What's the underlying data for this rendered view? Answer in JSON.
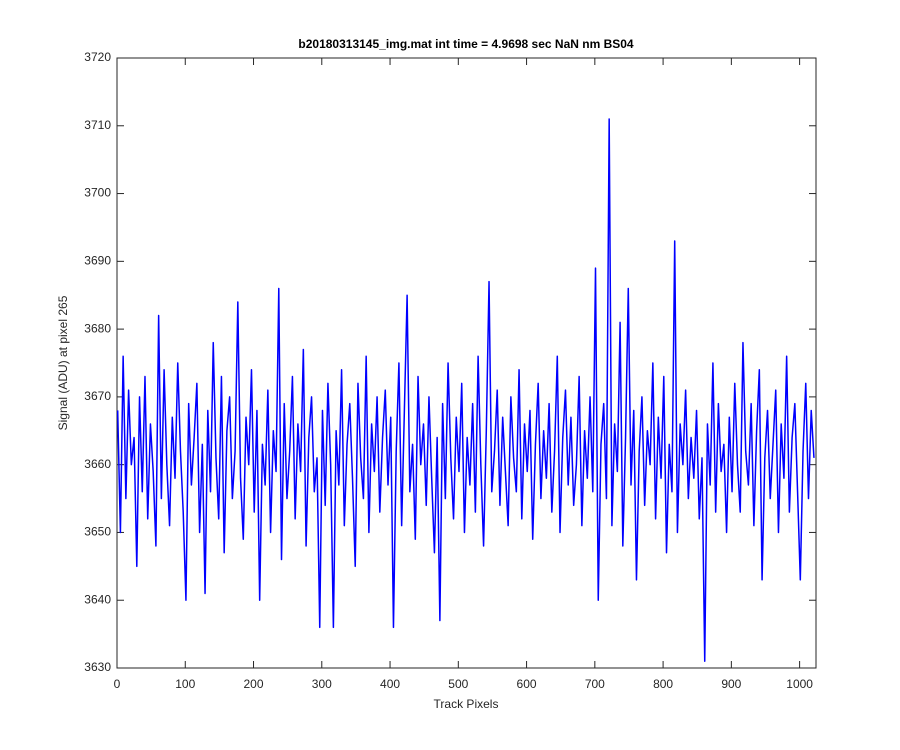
{
  "chart_data": {
    "type": "line",
    "title": "b20180313145_img.mat int time = 4.9698 sec  NaN nm BS04",
    "x_label": "Track Pixels",
    "y_label": "Signal (ADU) at pixel 265",
    "xlim": [
      0,
      1024
    ],
    "xticks": [
      0,
      100,
      200,
      300,
      400,
      500,
      600,
      700,
      800,
      900,
      1000
    ],
    "ylim": [
      3630,
      3720
    ],
    "yticks": [
      3630,
      3640,
      3650,
      3660,
      3670,
      3680,
      3690,
      3700,
      3710,
      3720
    ],
    "x": [
      1,
      5,
      9,
      13,
      17,
      21,
      25,
      29,
      33,
      37,
      41,
      45,
      49,
      53,
      57,
      61,
      65,
      69,
      73,
      77,
      81,
      85,
      89,
      93,
      97,
      101,
      105,
      109,
      113,
      117,
      121,
      125,
      129,
      133,
      137,
      141,
      145,
      149,
      153,
      157,
      161,
      165,
      169,
      173,
      177,
      181,
      185,
      189,
      193,
      197,
      201,
      205,
      209,
      213,
      217,
      221,
      225,
      229,
      233,
      237,
      241,
      245,
      249,
      253,
      257,
      261,
      265,
      269,
      273,
      277,
      281,
      285,
      289,
      293,
      297,
      301,
      305,
      309,
      313,
      317,
      321,
      325,
      329,
      333,
      337,
      341,
      345,
      349,
      353,
      357,
      361,
      365,
      369,
      373,
      377,
      381,
      385,
      389,
      393,
      397,
      401,
      405,
      409,
      413,
      417,
      421,
      425,
      429,
      433,
      437,
      441,
      445,
      449,
      453,
      457,
      461,
      465,
      469,
      473,
      477,
      481,
      485,
      489,
      493,
      497,
      501,
      505,
      509,
      513,
      517,
      521,
      525,
      529,
      533,
      537,
      541,
      545,
      549,
      553,
      557,
      561,
      565,
      569,
      573,
      577,
      581,
      585,
      589,
      593,
      597,
      601,
      605,
      609,
      613,
      617,
      621,
      625,
      629,
      633,
      637,
      641,
      645,
      649,
      653,
      657,
      661,
      665,
      669,
      673,
      677,
      681,
      685,
      689,
      693,
      697,
      701,
      705,
      709,
      713,
      717,
      721,
      725,
      729,
      733,
      737,
      741,
      745,
      749,
      753,
      757,
      761,
      765,
      769,
      773,
      777,
      781,
      785,
      789,
      793,
      797,
      801,
      805,
      809,
      813,
      817,
      821,
      825,
      829,
      833,
      837,
      841,
      845,
      849,
      853,
      857,
      861,
      865,
      869,
      873,
      877,
      881,
      885,
      889,
      893,
      897,
      901,
      905,
      909,
      913,
      917,
      921,
      925,
      929,
      933,
      937,
      941,
      945,
      949,
      953,
      957,
      961,
      965,
      969,
      973,
      977,
      981,
      985,
      989,
      993,
      997,
      1001,
      1005,
      1009,
      1013,
      1017,
      1021
    ],
    "series": [
      {
        "color": "#0000ff",
        "values": [
          3668,
          3650,
          3676,
          3655,
          3671,
          3660,
          3664,
          3645,
          3670,
          3656,
          3673,
          3652,
          3666,
          3659,
          3648,
          3682,
          3655,
          3674,
          3660,
          3651,
          3667,
          3658,
          3675,
          3662,
          3653,
          3640,
          3669,
          3657,
          3664,
          3672,
          3650,
          3663,
          3641,
          3668,
          3656,
          3678,
          3661,
          3652,
          3673,
          3647,
          3665,
          3670,
          3655,
          3662,
          3684,
          3658,
          3649,
          3667,
          3660,
          3674,
          3653,
          3668,
          3640,
          3663,
          3657,
          3671,
          3650,
          3665,
          3659,
          3686,
          3646,
          3669,
          3655,
          3662,
          3673,
          3652,
          3666,
          3659,
          3677,
          3648,
          3664,
          3670,
          3656,
          3661,
          3636,
          3668,
          3654,
          3672,
          3660,
          3636,
          3665,
          3657,
          3674,
          3651,
          3663,
          3669,
          3658,
          3645,
          3672,
          3661,
          3655,
          3676,
          3650,
          3666,
          3659,
          3670,
          3653,
          3664,
          3671,
          3657,
          3667,
          3636,
          3662,
          3675,
          3651,
          3668,
          3685,
          3656,
          3663,
          3649,
          3673,
          3660,
          3666,
          3654,
          3670,
          3658,
          3647,
          3664,
          3637,
          3669,
          3655,
          3675,
          3661,
          3652,
          3667,
          3659,
          3672,
          3650,
          3664,
          3657,
          3669,
          3653,
          3676,
          3660,
          3648,
          3665,
          3687,
          3656,
          3662,
          3671,
          3654,
          3667,
          3659,
          3651,
          3670,
          3661,
          3656,
          3674,
          3652,
          3666,
          3659,
          3668,
          3649,
          3663,
          3672,
          3655,
          3665,
          3658,
          3669,
          3653,
          3662,
          3676,
          3650,
          3664,
          3671,
          3657,
          3667,
          3654,
          3660,
          3673,
          3651,
          3665,
          3658,
          3670,
          3656,
          3689,
          3640,
          3663,
          3669,
          3655,
          3711,
          3651,
          3666,
          3659,
          3681,
          3648,
          3664,
          3686,
          3657,
          3668,
          3643,
          3662,
          3670,
          3654,
          3665,
          3660,
          3675,
          3652,
          3667,
          3658,
          3673,
          3647,
          3663,
          3656,
          3693,
          3650,
          3666,
          3660,
          3671,
          3655,
          3664,
          3658,
          3668,
          3652,
          3661,
          3631,
          3666,
          3657,
          3675,
          3653,
          3669,
          3659,
          3663,
          3650,
          3667,
          3656,
          3672,
          3660,
          3653,
          3678,
          3662,
          3657,
          3669,
          3651,
          3665,
          3674,
          3643,
          3661,
          3668,
          3655,
          3663,
          3671,
          3650,
          3666,
          3658,
          3676,
          3653,
          3664,
          3669,
          3656,
          3643,
          3662,
          3672,
          3655,
          3668,
          3661
        ]
      }
    ]
  }
}
